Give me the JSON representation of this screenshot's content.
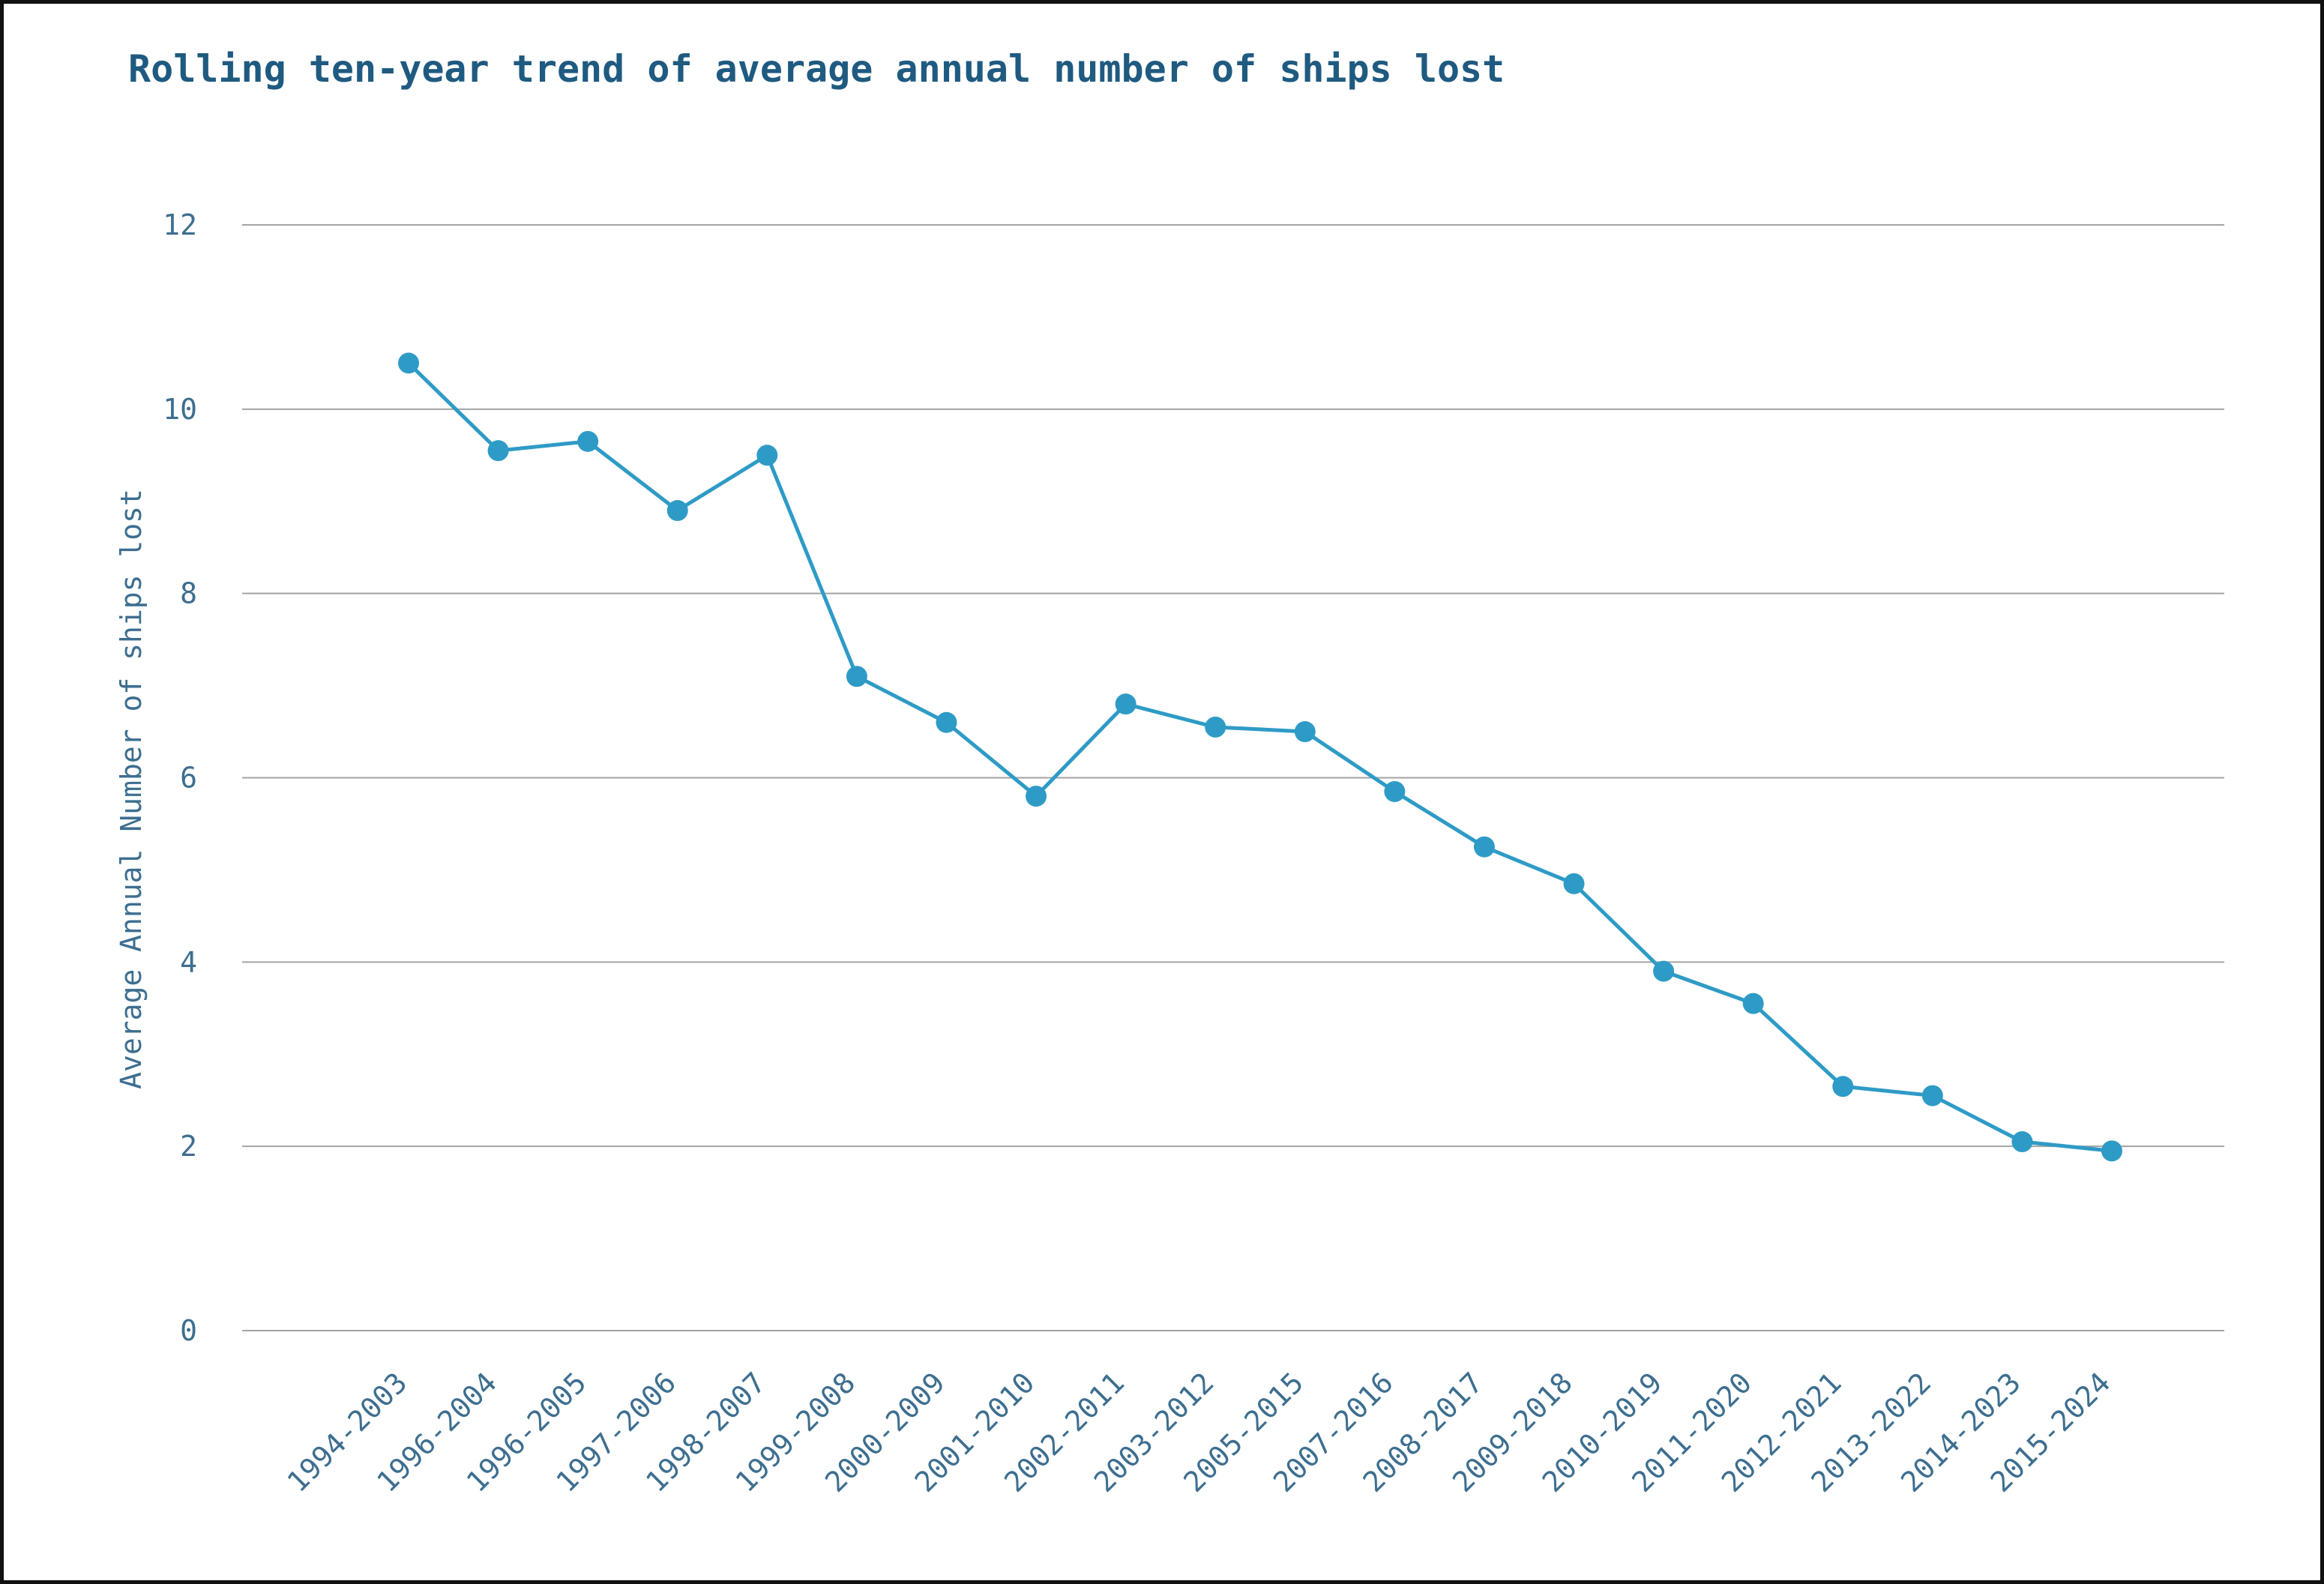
{
  "chart_data": {
    "type": "line",
    "title": "Rolling ten-year trend of average annual number of ships lost",
    "xlabel": "",
    "ylabel": "Average Annual Number of ships lost",
    "categories": [
      "1994-2003",
      "1996-2004",
      "1996-2005",
      "1997-2006",
      "1998-2007",
      "1999-2008",
      "2000-2009",
      "2001-2010",
      "2002-2011",
      "2003-2012",
      "2005-2015",
      "2007-2016",
      "2008-2017",
      "2009-2018",
      "2010-2019",
      "2011-2020",
      "2012-2021",
      "2013-2022",
      "2014-2023",
      "2015-2024"
    ],
    "series": [
      {
        "values": [
          10.5,
          9.55,
          9.65,
          8.9,
          9.5,
          7.1,
          6.6,
          5.8,
          6.8,
          6.55,
          6.5,
          5.85,
          5.25,
          4.85,
          3.9,
          3.55,
          2.65,
          2.55,
          2.05,
          1.95
        ]
      }
    ],
    "ylim": [
      0,
      12
    ],
    "yticks": [
      0,
      2,
      4,
      6,
      8,
      10,
      12
    ],
    "grid": true,
    "legend": "none",
    "colors": {
      "series": "#2e9bc6",
      "title": "#1f5a80",
      "labels": "#3d6e8f",
      "grid": "#a3a3a3"
    }
  }
}
